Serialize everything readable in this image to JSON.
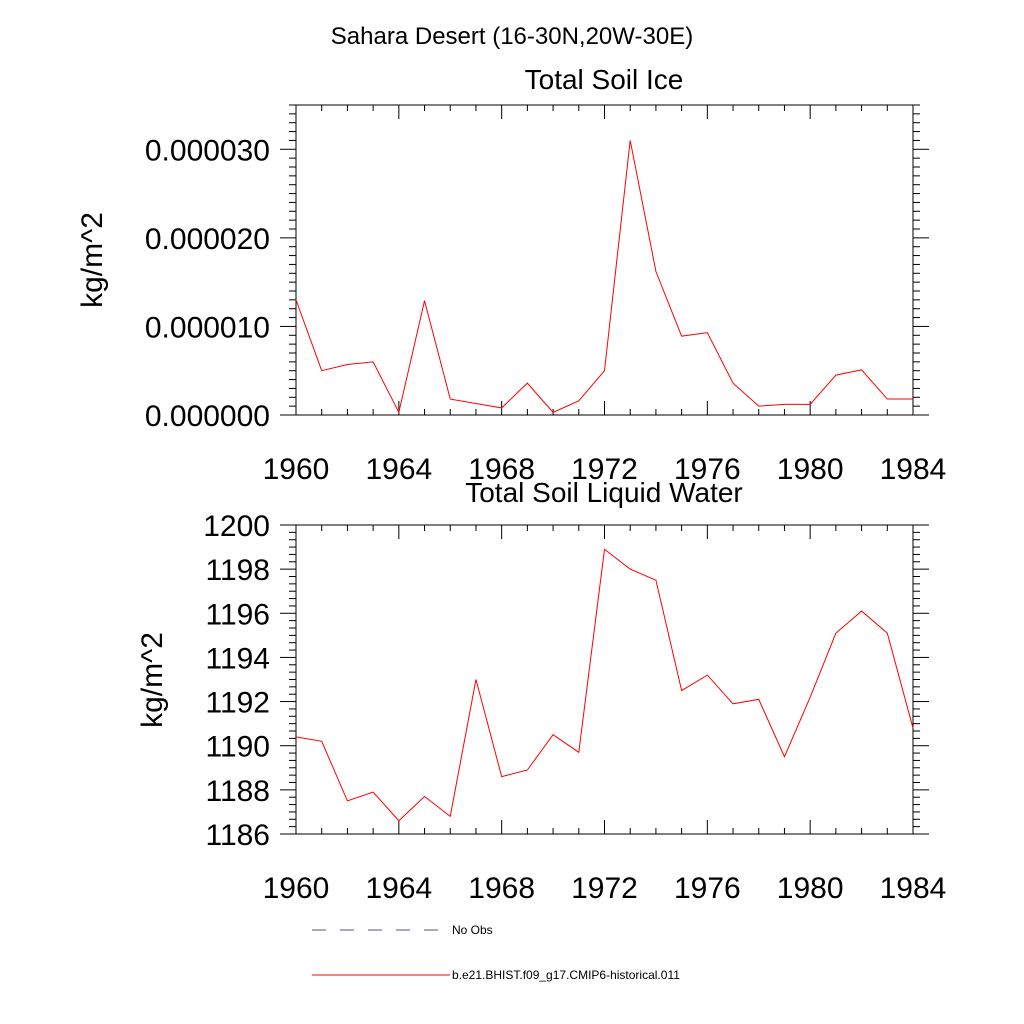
{
  "page_title": "Sahara Desert (16-30N,20W-30E)",
  "colors": {
    "series": "#ff0000",
    "no_obs": "#555577",
    "axis": "#000000"
  },
  "chart_data": [
    {
      "type": "line",
      "title": "Total Soil Ice",
      "xlabel": "",
      "ylabel": "kg/m^2",
      "xlim": [
        1960,
        1984
      ],
      "ylim": [
        0.0,
        3.5e-05
      ],
      "x_ticks": [
        1960,
        1964,
        1968,
        1972,
        1976,
        1980,
        1984
      ],
      "x_tick_labels": [
        "1960",
        "1964",
        "1968",
        "1972",
        "1976",
        "1980",
        "1984"
      ],
      "y_ticks": [
        0.0,
        1e-05,
        2e-05,
        3e-05
      ],
      "y_tick_labels": [
        "0.000000",
        "0.000010",
        "0.000020",
        "0.000030"
      ],
      "x": [
        1960,
        1961,
        1962,
        1963,
        1964,
        1965,
        1966,
        1967,
        1968,
        1969,
        1970,
        1971,
        1972,
        1973,
        1974,
        1975,
        1976,
        1977,
        1978,
        1979,
        1980,
        1981,
        1982,
        1983,
        1984
      ],
      "series": [
        {
          "name": "b.e21.BHIST.f09_g17.CMIP6-historical.011",
          "values": [
            1.3e-05,
            5e-06,
            5.7e-06,
            6e-06,
            3e-07,
            1.29e-05,
            1.8e-06,
            1.3e-06,
            8e-07,
            3.6e-06,
            3e-07,
            1.6e-06,
            5e-06,
            3.1e-05,
            1.62e-05,
            8.9e-06,
            9.3e-06,
            3.6e-06,
            1e-06,
            1.2e-06,
            1.2e-06,
            4.5e-06,
            5.1e-06,
            1.8e-06,
            1.8e-06
          ]
        }
      ]
    },
    {
      "type": "line",
      "title": "Total Soil Liquid Water",
      "xlabel": "",
      "ylabel": "kg/m^2",
      "xlim": [
        1960,
        1984
      ],
      "ylim": [
        1186,
        1200
      ],
      "x_ticks": [
        1960,
        1964,
        1968,
        1972,
        1976,
        1980,
        1984
      ],
      "x_tick_labels": [
        "1960",
        "1964",
        "1968",
        "1972",
        "1976",
        "1980",
        "1984"
      ],
      "y_ticks": [
        1186,
        1188,
        1190,
        1192,
        1194,
        1196,
        1198,
        1200
      ],
      "y_tick_labels": [
        "1186",
        "1188",
        "1190",
        "1192",
        "1194",
        "1196",
        "1198",
        "1200"
      ],
      "x": [
        1960,
        1961,
        1962,
        1963,
        1964,
        1965,
        1966,
        1967,
        1968,
        1969,
        1970,
        1971,
        1972,
        1973,
        1974,
        1975,
        1976,
        1977,
        1978,
        1979,
        1980,
        1981,
        1982,
        1983,
        1984
      ],
      "series": [
        {
          "name": "b.e21.BHIST.f09_g17.CMIP6-historical.011",
          "values": [
            1190.4,
            1190.2,
            1187.5,
            1187.9,
            1186.6,
            1187.7,
            1186.8,
            1193.0,
            1188.6,
            1188.9,
            1190.5,
            1189.7,
            1198.9,
            1198.0,
            1197.5,
            1192.5,
            1193.2,
            1191.9,
            1192.1,
            1189.5,
            1192.2,
            1195.1,
            1196.1,
            1195.1,
            1190.8
          ]
        }
      ]
    }
  ],
  "legend": {
    "placement": "bottom",
    "items": [
      {
        "label": "No Obs",
        "style": "dashed"
      },
      {
        "label": "b.e21.BHIST.f09_g17.CMIP6-historical.011",
        "style": "solid"
      }
    ]
  }
}
